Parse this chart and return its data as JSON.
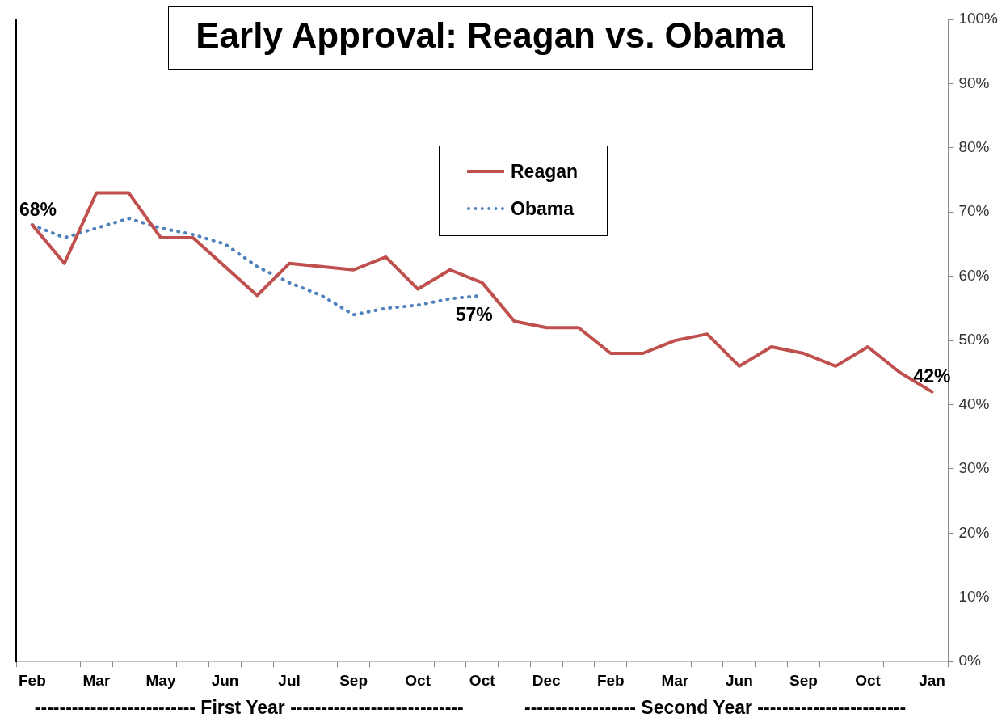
{
  "chart_data": {
    "type": "line",
    "title": "Early Approval: Reagan vs. Obama",
    "categories": [
      "Feb",
      null,
      "Mar",
      null,
      "May",
      null,
      "Jun",
      null,
      "Jul",
      null,
      "Sep",
      null,
      "Oct",
      null,
      "Oct",
      null,
      "Dec",
      null,
      "Feb",
      null,
      "Mar",
      null,
      "Jun",
      null,
      "Sep",
      null,
      "Oct",
      null,
      "Jan"
    ],
    "series": [
      {
        "name": "Reagan",
        "color": "#c0504d",
        "line_style": "solid",
        "values": [
          68,
          62,
          73,
          73,
          66,
          66,
          61.5,
          57,
          62,
          61.5,
          61,
          63,
          58,
          61,
          59,
          53,
          52,
          52,
          48,
          48,
          50,
          51,
          46,
          49,
          48,
          46,
          49,
          45,
          42
        ],
        "value_labels": [
          "68%",
          null,
          null,
          null,
          null,
          null,
          null,
          null,
          null,
          null,
          null,
          null,
          null,
          null,
          null,
          null,
          null,
          null,
          null,
          null,
          null,
          null,
          null,
          null,
          null,
          null,
          null,
          null,
          "42%"
        ]
      },
      {
        "name": "Obama",
        "color": "#4f81bd",
        "line_style": "dotted",
        "values": [
          68,
          66,
          67.5,
          69,
          67.5,
          66.5,
          65,
          61.5,
          59,
          57,
          54,
          55,
          55.5,
          56.5,
          57,
          null,
          null,
          null,
          null,
          null,
          null,
          null,
          null,
          null,
          null,
          null,
          null,
          null,
          null
        ],
        "value_labels": [
          null,
          null,
          null,
          null,
          null,
          null,
          null,
          null,
          null,
          null,
          null,
          null,
          null,
          null,
          "57%",
          null,
          null,
          null,
          null,
          null,
          null,
          null,
          null,
          null,
          null,
          null,
          null,
          null,
          null
        ]
      }
    ],
    "ylim": [
      0,
      100
    ],
    "yticks": [
      {
        "value": 0,
        "label": "0%"
      },
      {
        "value": 10,
        "label": "10%"
      },
      {
        "value": 20,
        "label": "20%"
      },
      {
        "value": 30,
        "label": "30%"
      },
      {
        "value": 40,
        "label": "40%"
      },
      {
        "value": 50,
        "label": "50%"
      },
      {
        "value": 60,
        "label": "60%"
      },
      {
        "value": 70,
        "label": "70%"
      },
      {
        "value": 80,
        "label": "80%"
      },
      {
        "value": 90,
        "label": "90%"
      },
      {
        "value": 100,
        "label": "100%"
      }
    ],
    "grid": false,
    "legend": "top",
    "marker": "none",
    "annotations": [
      "-------------------------- First Year ----------------------------",
      "------------------ Second Year ------------------------"
    ]
  }
}
